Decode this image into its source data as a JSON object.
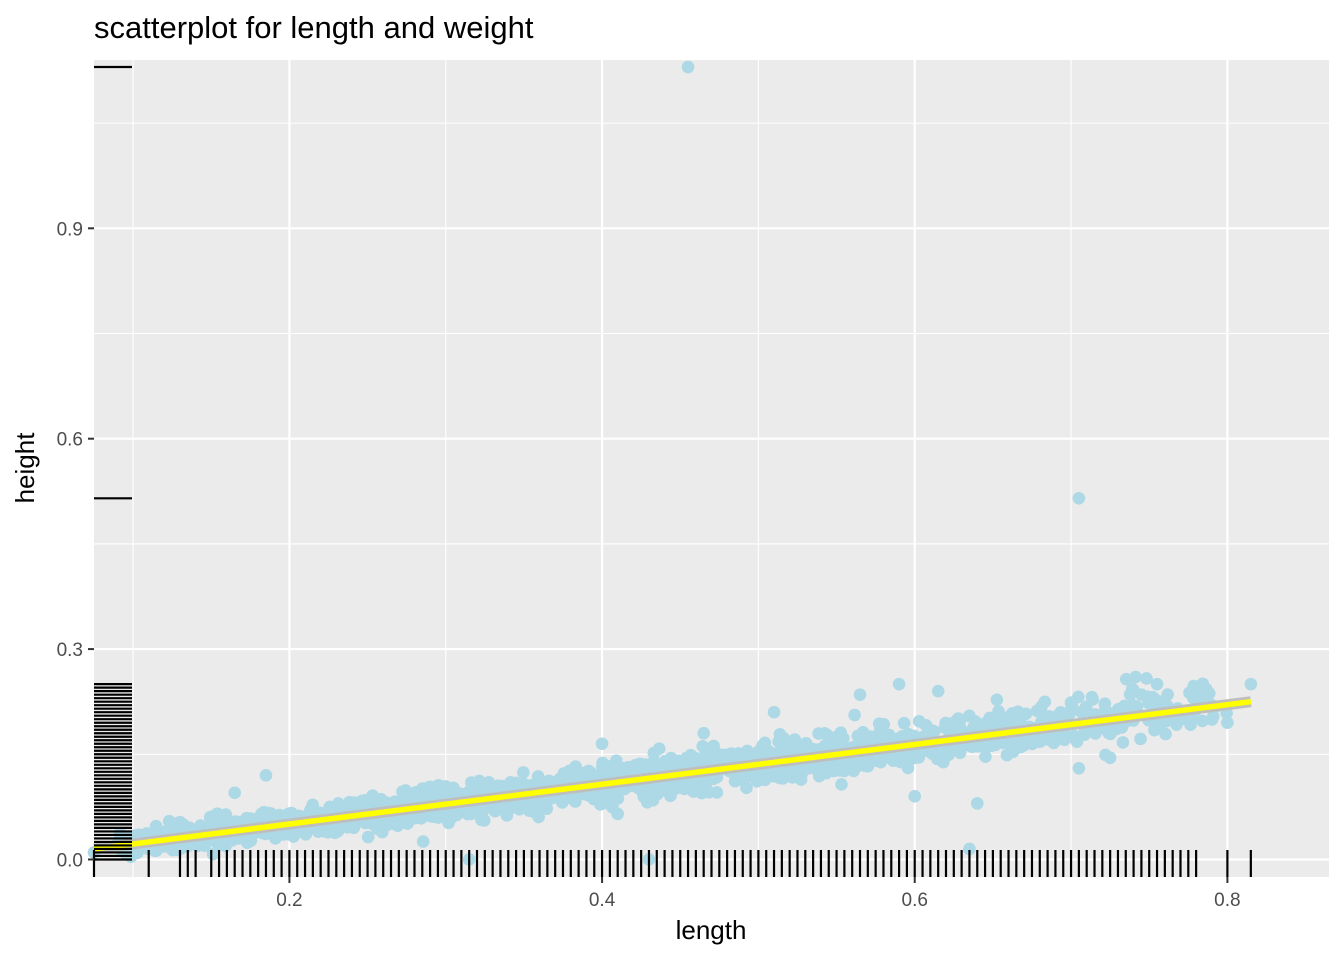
{
  "chart_data": {
    "type": "scatter",
    "title": "scatterplot for length and weight",
    "xlabel": "length",
    "ylabel": "height",
    "xlim": [
      0.075,
      0.865
    ],
    "ylim": [
      -0.025,
      1.14
    ],
    "x_ticks": [
      0.2,
      0.4,
      0.6,
      0.8
    ],
    "x_tick_labels": [
      "0.2",
      "0.4",
      "0.6",
      "0.8"
    ],
    "y_ticks": [
      0.0,
      0.3,
      0.6,
      0.9
    ],
    "y_tick_labels": [
      "0.0",
      "0.3",
      "0.6",
      "0.9"
    ],
    "grid": true,
    "rug": true,
    "point_color": "#add8e6",
    "fit_line_color": "#ffff00",
    "fit_band_color": "#bebebe",
    "panel_color": "#ebebeb",
    "fit_line": {
      "x": [
        0.075,
        0.815
      ],
      "y": [
        0.015,
        0.225
      ]
    },
    "trend": {
      "slope": 0.284,
      "intercept": -0.006,
      "x_range": [
        0.09,
        0.8
      ],
      "residual_sd": 0.014
    },
    "outliers": [
      {
        "x": 0.455,
        "y": 1.13
      },
      {
        "x": 0.705,
        "y": 0.515
      },
      {
        "x": 0.075,
        "y": 0.01
      },
      {
        "x": 0.315,
        "y": 0.0
      },
      {
        "x": 0.43,
        "y": 0.0
      },
      {
        "x": 0.635,
        "y": 0.015
      },
      {
        "x": 0.815,
        "y": 0.25
      },
      {
        "x": 0.8,
        "y": 0.195
      },
      {
        "x": 0.185,
        "y": 0.12
      },
      {
        "x": 0.165,
        "y": 0.095
      },
      {
        "x": 0.4,
        "y": 0.165
      },
      {
        "x": 0.6,
        "y": 0.09
      },
      {
        "x": 0.64,
        "y": 0.08
      },
      {
        "x": 0.705,
        "y": 0.13
      },
      {
        "x": 0.725,
        "y": 0.145
      },
      {
        "x": 0.59,
        "y": 0.25
      },
      {
        "x": 0.565,
        "y": 0.235
      },
      {
        "x": 0.755,
        "y": 0.25
      },
      {
        "x": 0.51,
        "y": 0.21
      },
      {
        "x": 0.11,
        "y": 0.03
      },
      {
        "x": 0.13,
        "y": 0.035
      },
      {
        "x": 0.745,
        "y": 0.235
      },
      {
        "x": 0.615,
        "y": 0.24
      },
      {
        "x": 0.41,
        "y": 0.065
      },
      {
        "x": 0.465,
        "y": 0.18
      }
    ],
    "rug_y_values": [
      1.13,
      0.515,
      0.25,
      0.245,
      0.24,
      0.235,
      0.23,
      0.225,
      0.22,
      0.215,
      0.21,
      0.205,
      0.2,
      0.195,
      0.19,
      0.185,
      0.18,
      0.175,
      0.17,
      0.165,
      0.16,
      0.155,
      0.15,
      0.145,
      0.14,
      0.135,
      0.13,
      0.125,
      0.12,
      0.115,
      0.11,
      0.105,
      0.1,
      0.095,
      0.09,
      0.085,
      0.08,
      0.075,
      0.07,
      0.065,
      0.06,
      0.055,
      0.05,
      0.045,
      0.04,
      0.035,
      0.03,
      0.025,
      0.02,
      0.015,
      0.01,
      0.005,
      0.0
    ],
    "rug_x_values": [
      0.075,
      0.11,
      0.13,
      0.135,
      0.14,
      0.15,
      0.155,
      0.16,
      0.165,
      0.17,
      0.175,
      0.18,
      0.185,
      0.19,
      0.195,
      0.2,
      0.205,
      0.21,
      0.215,
      0.22,
      0.225,
      0.23,
      0.235,
      0.24,
      0.245,
      0.25,
      0.255,
      0.26,
      0.265,
      0.27,
      0.275,
      0.28,
      0.285,
      0.29,
      0.295,
      0.3,
      0.305,
      0.31,
      0.315,
      0.32,
      0.325,
      0.33,
      0.335,
      0.34,
      0.345,
      0.35,
      0.355,
      0.36,
      0.365,
      0.37,
      0.375,
      0.38,
      0.385,
      0.39,
      0.395,
      0.4,
      0.405,
      0.41,
      0.415,
      0.42,
      0.425,
      0.43,
      0.435,
      0.44,
      0.445,
      0.45,
      0.455,
      0.46,
      0.465,
      0.47,
      0.475,
      0.48,
      0.485,
      0.49,
      0.495,
      0.5,
      0.505,
      0.51,
      0.515,
      0.52,
      0.525,
      0.53,
      0.535,
      0.54,
      0.545,
      0.55,
      0.555,
      0.56,
      0.565,
      0.57,
      0.575,
      0.58,
      0.585,
      0.59,
      0.595,
      0.6,
      0.605,
      0.61,
      0.615,
      0.62,
      0.625,
      0.63,
      0.635,
      0.64,
      0.645,
      0.65,
      0.655,
      0.66,
      0.665,
      0.67,
      0.675,
      0.68,
      0.685,
      0.69,
      0.695,
      0.7,
      0.705,
      0.71,
      0.715,
      0.72,
      0.725,
      0.73,
      0.735,
      0.74,
      0.745,
      0.75,
      0.755,
      0.76,
      0.765,
      0.77,
      0.775,
      0.78,
      0.8,
      0.815
    ]
  }
}
